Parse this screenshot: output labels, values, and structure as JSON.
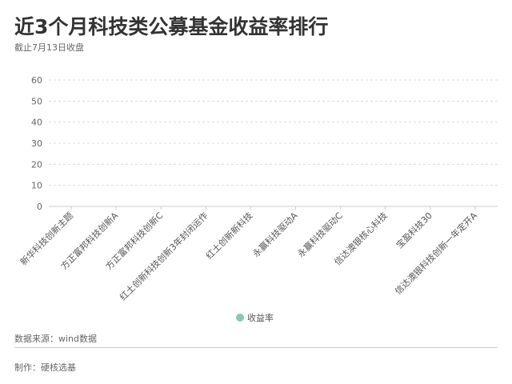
{
  "title": "近3个月科技类公募基金收益率排行",
  "subtitle": "截止7月13日收盘",
  "source": "数据来源：wind数据",
  "maker": "制作：硬核选基",
  "chart_data": {
    "type": "bar",
    "title": "近3个月科技类公募基金收益率排行",
    "categories": [
      "新华科技创新主题",
      "方正富邦科技创新A",
      "方正富邦科技创新C",
      "红土创新科技创新3年封闭运作",
      "红土创新新科技",
      "永赢科技驱动A",
      "永赢科技驱动C",
      "信达澳银核心科技",
      "宝盈科技30",
      "信达澳银科技创新一年定开A"
    ],
    "series": [
      {
        "name": "收益率",
        "values": [
          null,
          null,
          null,
          null,
          null,
          null,
          null,
          null,
          null,
          null
        ],
        "color": "#8cc7b5"
      }
    ],
    "yticks": [
      0,
      10,
      20,
      30,
      40,
      50,
      60
    ],
    "ylim": [
      0,
      60
    ],
    "grid": true,
    "legend": "bottom"
  }
}
